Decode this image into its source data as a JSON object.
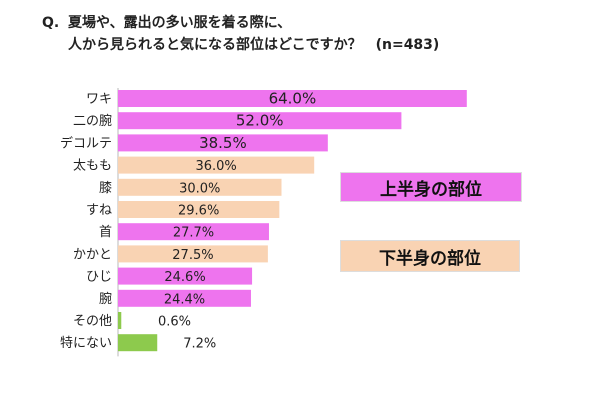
{
  "question": {
    "mark": "Q.",
    "line1": "夏場や、露出の多い服を着る際に、",
    "line2": "人から見られると気になる部位はどこですか？",
    "sample": "(n=483)"
  },
  "legend": {
    "upper": {
      "label": "上半身の部位",
      "color": "#ee74ee"
    },
    "lower": {
      "label": "下半身の部位",
      "color": "#f9d3b3"
    }
  },
  "colors": {
    "upper": "#ee74ee",
    "lower": "#f9d3b3",
    "other": "#8dca4d"
  },
  "chart_data": {
    "type": "bar",
    "orientation": "horizontal",
    "categories": [
      "ワキ",
      "二の腕",
      "デコルテ",
      "太もも",
      "膝",
      "すね",
      "首",
      "かかと",
      "ひじ",
      "腕",
      "その他",
      "特にない"
    ],
    "values": [
      64.0,
      52.0,
      38.5,
      36.0,
      30.0,
      29.6,
      27.7,
      27.5,
      24.6,
      24.4,
      0.6,
      7.2
    ],
    "value_labels": [
      "64.0%",
      "52.0%",
      "38.5%",
      "36.0%",
      "30.0%",
      "29.6%",
      "27.7%",
      "27.5%",
      "24.6%",
      "24.4%",
      "0.6%",
      "7.2%"
    ],
    "groups": [
      "upper",
      "upper",
      "upper",
      "lower",
      "lower",
      "lower",
      "upper",
      "lower",
      "upper",
      "upper",
      "other",
      "other"
    ],
    "unit": "%",
    "xlim": [
      0,
      100
    ],
    "grid": false
  }
}
